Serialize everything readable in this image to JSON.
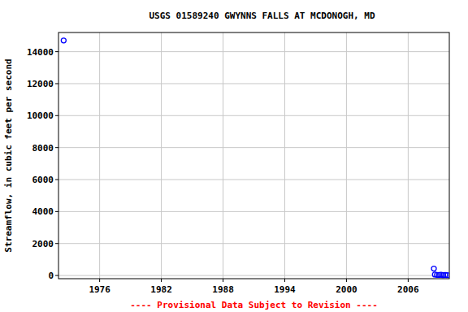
{
  "chart_data": {
    "type": "scatter",
    "title": "USGS 01589240 GWYNNS FALLS AT MCDONOGH, MD",
    "y_label": "Streamflow, in cubic feet per second",
    "annotations": [
      "---- Provisional Data Subject to Revision ----"
    ],
    "x": [
      1972.5,
      2008.5,
      2008.6,
      2008.8,
      2009.0,
      2009.2,
      2009.4,
      2009.6,
      2009.8
    ],
    "values": [
      14700,
      430,
      60,
      40,
      30,
      50,
      20,
      30,
      20
    ],
    "color": "#0000ff",
    "marker": "circle",
    "xlim": [
      1972,
      2010
    ],
    "xticks": [
      1976,
      1982,
      1988,
      1994,
      2000,
      2006
    ],
    "ylim": [
      -200,
      15200
    ],
    "yticks": [
      0,
      2000,
      4000,
      6000,
      8000,
      10000,
      12000,
      14000
    ],
    "grid": true
  }
}
